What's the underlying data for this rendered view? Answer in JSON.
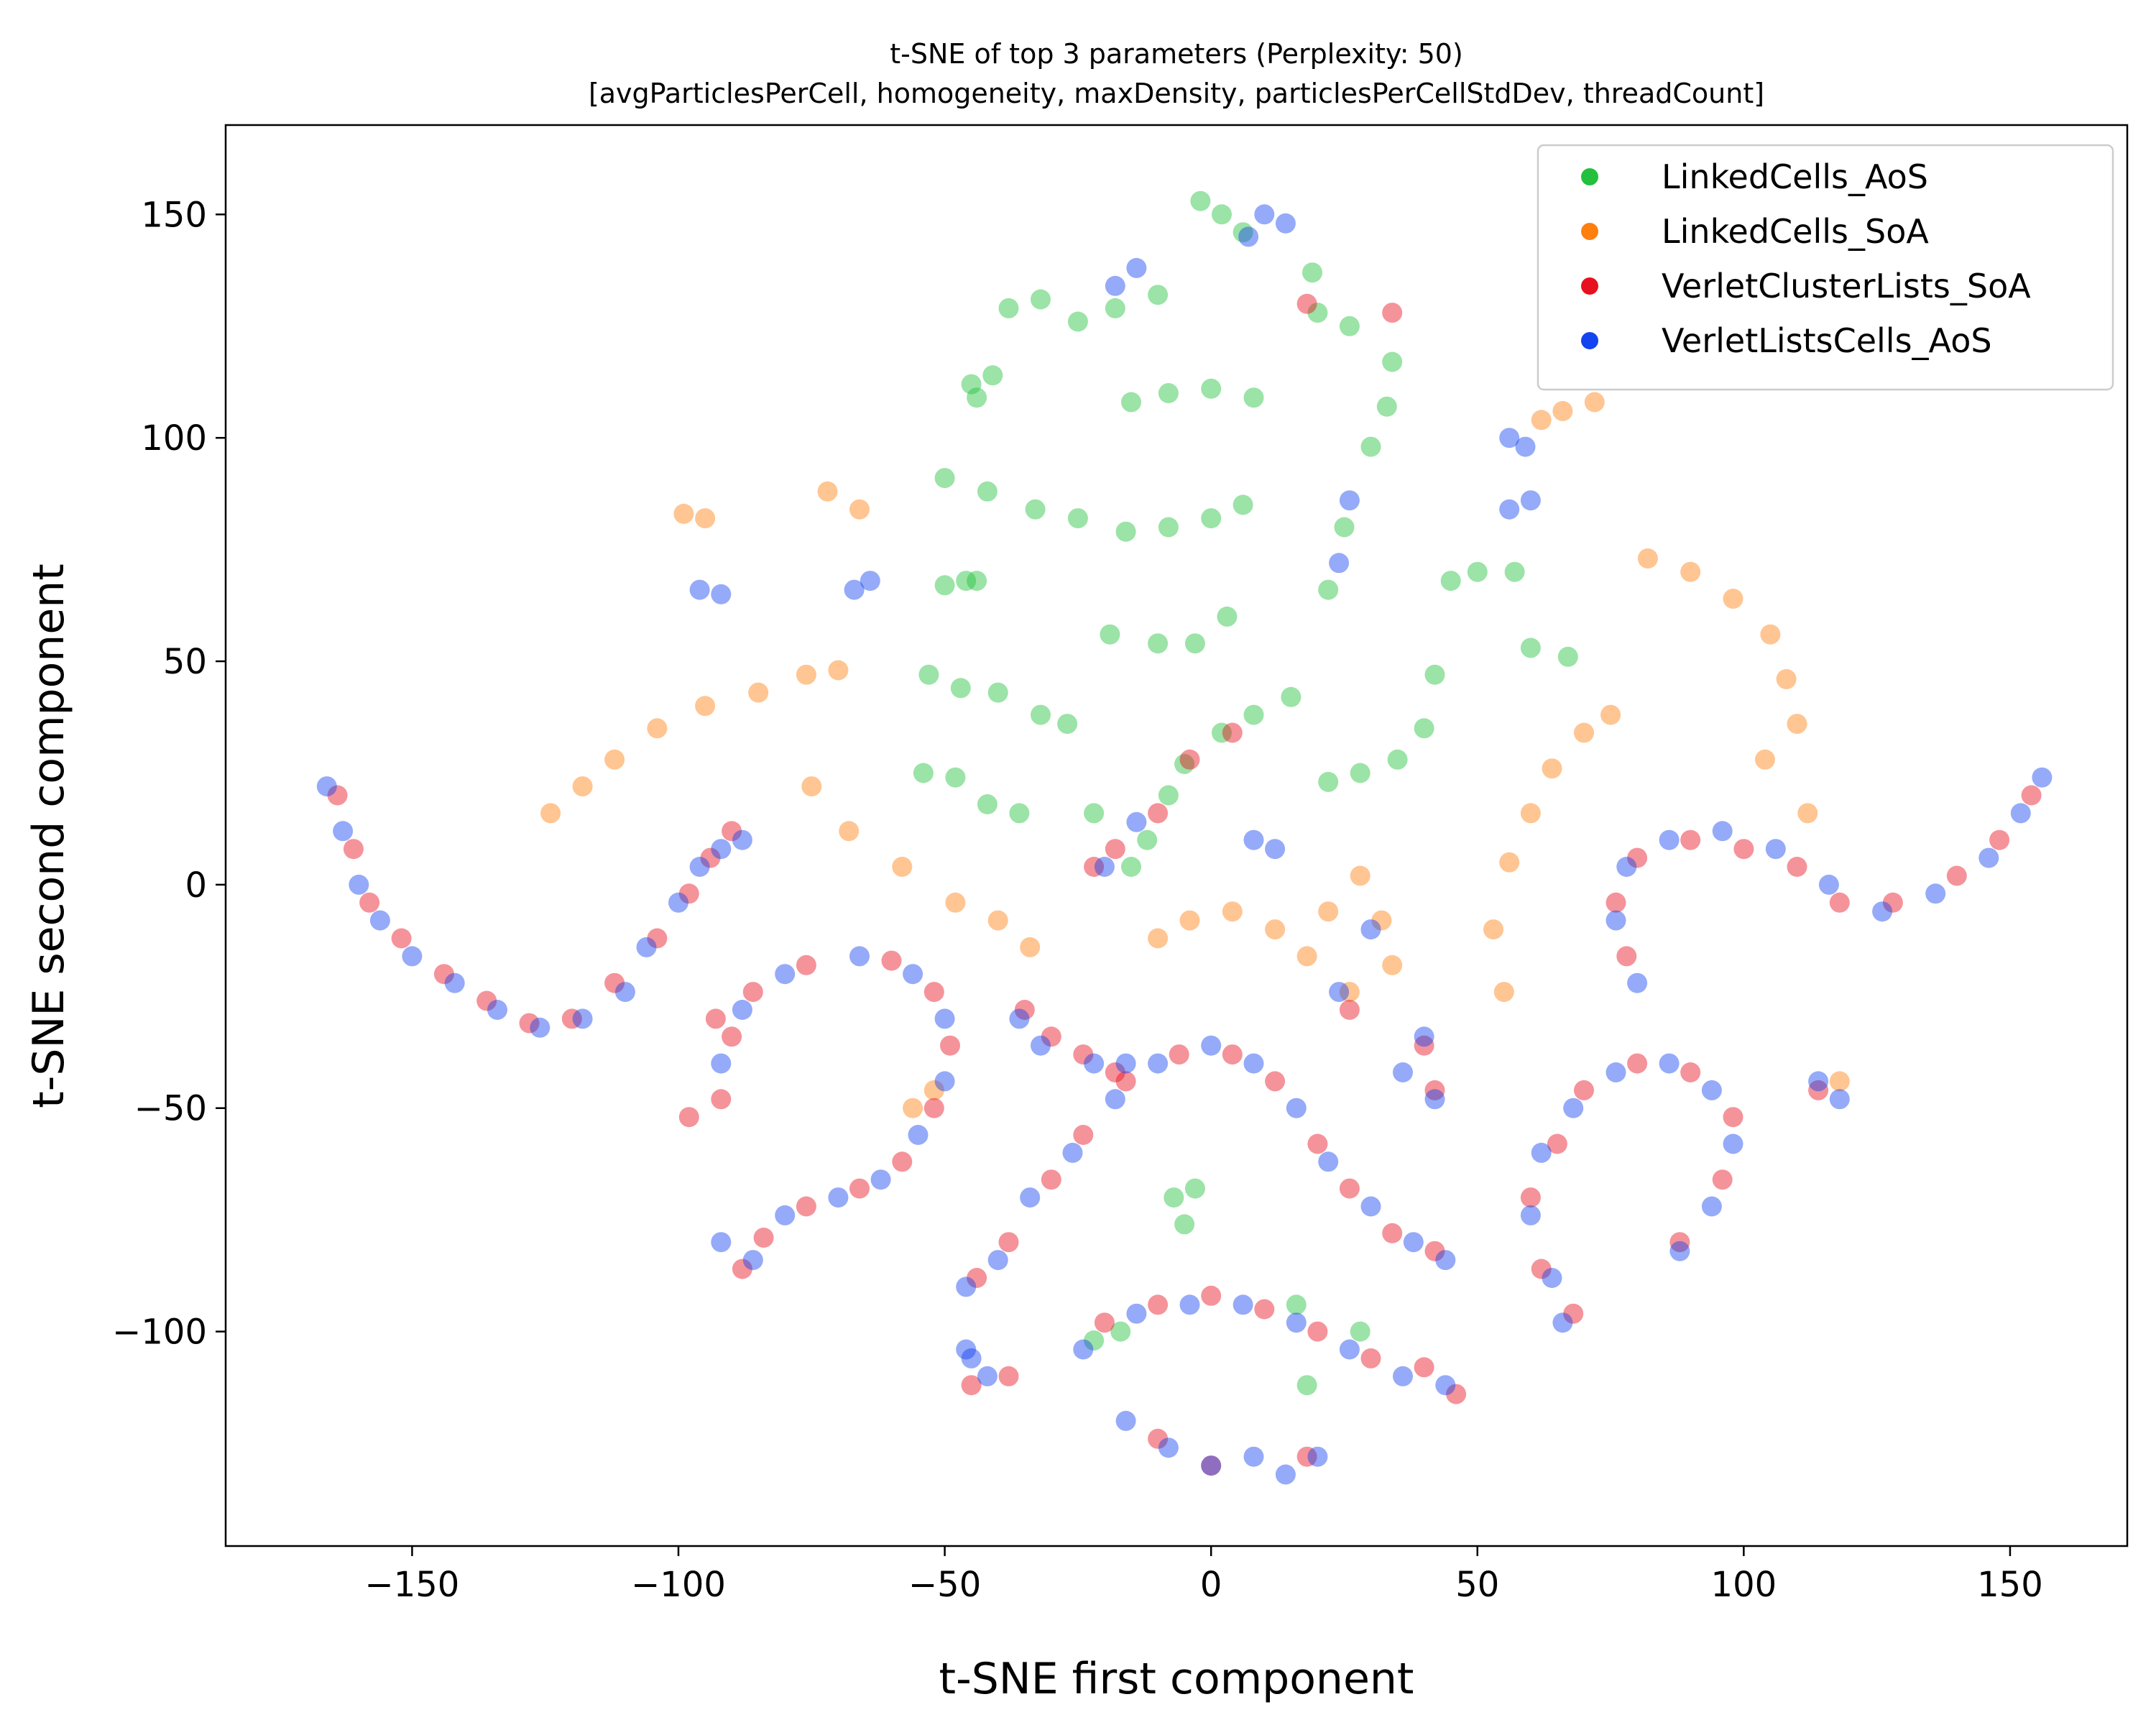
{
  "chart_data": {
    "type": "scatter",
    "title": "t-SNE of top 3 parameters (Perplexity: 50)",
    "subtitle": "[avgParticlesPerCell, homogeneity, maxDensity, particlesPerCellStdDev, threadCount]",
    "xlabel": "t-SNE first component",
    "ylabel": "t-SNE second component",
    "xlim": [
      -185,
      172
    ],
    "ylim": [
      -148,
      170
    ],
    "xticks": [
      -150,
      -100,
      -50,
      0,
      50,
      100,
      150
    ],
    "yticks": [
      -100,
      -50,
      0,
      50,
      100,
      150
    ],
    "xtick_labels": [
      "−150",
      "−100",
      "−50",
      "0",
      "50",
      "100",
      "150"
    ],
    "ytick_labels": [
      "−100",
      "−50",
      "0",
      "50",
      "100",
      "150"
    ],
    "grid": false,
    "legend_position": "top-right",
    "marker_alpha": 0.45,
    "series": [
      {
        "name": "LinkedCells_AoS",
        "color": "#22c03c",
        "points": [
          [
            -2,
            153
          ],
          [
            2,
            150
          ],
          [
            6,
            146
          ],
          [
            -45,
            112
          ],
          [
            -41,
            114
          ],
          [
            -44,
            109
          ],
          [
            -38,
            129
          ],
          [
            -32,
            131
          ],
          [
            -25,
            126
          ],
          [
            -18,
            129
          ],
          [
            -10,
            132
          ],
          [
            -15,
            108
          ],
          [
            -8,
            110
          ],
          [
            0,
            111
          ],
          [
            8,
            109
          ],
          [
            -50,
            91
          ],
          [
            -42,
            88
          ],
          [
            -33,
            84
          ],
          [
            -25,
            82
          ],
          [
            -16,
            79
          ],
          [
            -8,
            80
          ],
          [
            0,
            82
          ],
          [
            6,
            85
          ],
          [
            -50,
            67
          ],
          [
            -46,
            68
          ],
          [
            -44,
            68
          ],
          [
            -53,
            47
          ],
          [
            -47,
            44
          ],
          [
            -40,
            43
          ],
          [
            -32,
            38
          ],
          [
            -27,
            36
          ],
          [
            -54,
            25
          ],
          [
            -48,
            24
          ],
          [
            -42,
            18
          ],
          [
            -36,
            16
          ],
          [
            -22,
            16
          ],
          [
            -19,
            56
          ],
          [
            -10,
            54
          ],
          [
            -3,
            54
          ],
          [
            3,
            60
          ],
          [
            -15,
            4
          ],
          [
            -12,
            10
          ],
          [
            -8,
            20
          ],
          [
            -5,
            27
          ],
          [
            2,
            34
          ],
          [
            8,
            38
          ],
          [
            15,
            42
          ],
          [
            19,
            137
          ],
          [
            20,
            128
          ],
          [
            26,
            125
          ],
          [
            34,
            117
          ],
          [
            33,
            107
          ],
          [
            30,
            98
          ],
          [
            25,
            80
          ],
          [
            22,
            66
          ],
          [
            42,
            47
          ],
          [
            40,
            35
          ],
          [
            35,
            28
          ],
          [
            28,
            25
          ],
          [
            22,
            23
          ],
          [
            45,
            68
          ],
          [
            50,
            70
          ],
          [
            57,
            70
          ],
          [
            60,
            53
          ],
          [
            67,
            51
          ],
          [
            -7,
            -70
          ],
          [
            -5,
            -76
          ],
          [
            -3,
            -68
          ],
          [
            -22,
            -102
          ],
          [
            -17,
            -100
          ],
          [
            16,
            -94
          ],
          [
            28,
            -100
          ],
          [
            18,
            -112
          ]
        ]
      },
      {
        "name": "LinkedCells_SoA",
        "color": "#ff7f0e",
        "points": [
          [
            -124,
            16
          ],
          [
            -118,
            22
          ],
          [
            -112,
            28
          ],
          [
            -104,
            35
          ],
          [
            -95,
            40
          ],
          [
            -85,
            43
          ],
          [
            -76,
            47
          ],
          [
            -70,
            48
          ],
          [
            -99,
            83
          ],
          [
            -95,
            82
          ],
          [
            -75,
            22
          ],
          [
            -68,
            12
          ],
          [
            -58,
            4
          ],
          [
            -48,
            -4
          ],
          [
            -40,
            -8
          ],
          [
            -34,
            -14
          ],
          [
            -72,
            88
          ],
          [
            -66,
            84
          ],
          [
            -10,
            -12
          ],
          [
            -4,
            -8
          ],
          [
            4,
            -6
          ],
          [
            12,
            -10
          ],
          [
            18,
            -16
          ],
          [
            22,
            -6
          ],
          [
            28,
            2
          ],
          [
            32,
            -8
          ],
          [
            34,
            -18
          ],
          [
            26,
            -24
          ],
          [
            55,
            -24
          ],
          [
            53,
            -10
          ],
          [
            56,
            5
          ],
          [
            60,
            16
          ],
          [
            64,
            26
          ],
          [
            70,
            34
          ],
          [
            75,
            38
          ],
          [
            -52,
            -46
          ],
          [
            -56,
            -50
          ],
          [
            82,
            73
          ],
          [
            90,
            70
          ],
          [
            98,
            64
          ],
          [
            105,
            56
          ],
          [
            108,
            46
          ],
          [
            110,
            36
          ],
          [
            104,
            28
          ],
          [
            62,
            104
          ],
          [
            66,
            106
          ],
          [
            72,
            108
          ],
          [
            118,
            -44
          ],
          [
            112,
            16
          ]
        ]
      },
      {
        "name": "VerletClusterLists_SoA",
        "color": "#e8101e",
        "points": [
          [
            -164,
            20
          ],
          [
            -161,
            8
          ],
          [
            -158,
            -4
          ],
          [
            -152,
            -12
          ],
          [
            -144,
            -20
          ],
          [
            -136,
            -26
          ],
          [
            -128,
            -31
          ],
          [
            -120,
            -30
          ],
          [
            -112,
            -22
          ],
          [
            -104,
            -12
          ],
          [
            -98,
            -2
          ],
          [
            -94,
            6
          ],
          [
            -90,
            12
          ],
          [
            -93,
            -30
          ],
          [
            -92,
            -48
          ],
          [
            -98,
            -52
          ],
          [
            -88,
            -86
          ],
          [
            -84,
            -79
          ],
          [
            -76,
            -72
          ],
          [
            -66,
            -68
          ],
          [
            -58,
            -62
          ],
          [
            -52,
            -50
          ],
          [
            -49,
            -36
          ],
          [
            -52,
            -24
          ],
          [
            -60,
            -17
          ],
          [
            -76,
            -18
          ],
          [
            -86,
            -24
          ],
          [
            -90,
            -34
          ],
          [
            -35,
            -28
          ],
          [
            -30,
            -34
          ],
          [
            -45,
            -112
          ],
          [
            -38,
            -110
          ],
          [
            -44,
            -88
          ],
          [
            -38,
            -80
          ],
          [
            -30,
            -66
          ],
          [
            -24,
            -56
          ],
          [
            -16,
            -44
          ],
          [
            -6,
            -38
          ],
          [
            4,
            -38
          ],
          [
            12,
            -44
          ],
          [
            20,
            -58
          ],
          [
            26,
            -68
          ],
          [
            34,
            -78
          ],
          [
            42,
            -82
          ],
          [
            -20,
            -98
          ],
          [
            -10,
            -94
          ],
          [
            0,
            -92
          ],
          [
            10,
            -95
          ],
          [
            20,
            -100
          ],
          [
            30,
            -106
          ],
          [
            40,
            -108
          ],
          [
            46,
            -114
          ],
          [
            -10,
            -124
          ],
          [
            0,
            -130
          ],
          [
            18,
            -128
          ],
          [
            65,
            -58
          ],
          [
            60,
            -70
          ],
          [
            62,
            -86
          ],
          [
            68,
            -96
          ],
          [
            70,
            -46
          ],
          [
            80,
            -40
          ],
          [
            90,
            -42
          ],
          [
            98,
            -52
          ],
          [
            96,
            -66
          ],
          [
            88,
            -80
          ],
          [
            78,
            -16
          ],
          [
            76,
            -4
          ],
          [
            80,
            6
          ],
          [
            90,
            10
          ],
          [
            100,
            8
          ],
          [
            110,
            4
          ],
          [
            118,
            -4
          ],
          [
            128,
            -4
          ],
          [
            140,
            2
          ],
          [
            148,
            10
          ],
          [
            154,
            20
          ],
          [
            40,
            -36
          ],
          [
            42,
            -46
          ],
          [
            -24,
            -38
          ],
          [
            -18,
            -42
          ],
          [
            114,
            -46
          ],
          [
            -22,
            4
          ],
          [
            -18,
            8
          ],
          [
            -10,
            16
          ],
          [
            -4,
            28
          ],
          [
            4,
            34
          ],
          [
            26,
            -28
          ],
          [
            34,
            128
          ],
          [
            18,
            130
          ]
        ]
      },
      {
        "name": "VerletListsCells_AoS",
        "color": "#1443f0",
        "points": [
          [
            -166,
            22
          ],
          [
            -163,
            12
          ],
          [
            -160,
            0
          ],
          [
            -156,
            -8
          ],
          [
            -150,
            -16
          ],
          [
            -142,
            -22
          ],
          [
            -134,
            -28
          ],
          [
            -126,
            -32
          ],
          [
            -118,
            -30
          ],
          [
            -110,
            -24
          ],
          [
            -106,
            -14
          ],
          [
            -100,
            -4
          ],
          [
            -96,
            4
          ],
          [
            -92,
            8
          ],
          [
            -88,
            10
          ],
          [
            -96,
            66
          ],
          [
            -92,
            65
          ],
          [
            -67,
            66
          ],
          [
            -64,
            68
          ],
          [
            -92,
            -80
          ],
          [
            -86,
            -84
          ],
          [
            -80,
            -74
          ],
          [
            -70,
            -70
          ],
          [
            -62,
            -66
          ],
          [
            -55,
            -56
          ],
          [
            -50,
            -44
          ],
          [
            -50,
            -30
          ],
          [
            -56,
            -20
          ],
          [
            -66,
            -16
          ],
          [
            -80,
            -20
          ],
          [
            -88,
            -28
          ],
          [
            -92,
            -40
          ],
          [
            -45,
            -106
          ],
          [
            -42,
            -110
          ],
          [
            -46,
            -104
          ],
          [
            -36,
            -30
          ],
          [
            -32,
            -36
          ],
          [
            -46,
            -90
          ],
          [
            -40,
            -84
          ],
          [
            -34,
            -70
          ],
          [
            -26,
            -60
          ],
          [
            -18,
            -48
          ],
          [
            -10,
            -40
          ],
          [
            0,
            -36
          ],
          [
            8,
            -40
          ],
          [
            16,
            -50
          ],
          [
            22,
            -62
          ],
          [
            30,
            -72
          ],
          [
            38,
            -80
          ],
          [
            44,
            -84
          ],
          [
            -24,
            -104
          ],
          [
            -14,
            -96
          ],
          [
            -4,
            -94
          ],
          [
            6,
            -94
          ],
          [
            16,
            -98
          ],
          [
            26,
            -104
          ],
          [
            36,
            -110
          ],
          [
            44,
            -112
          ],
          [
            -16,
            -120
          ],
          [
            -8,
            -126
          ],
          [
            0,
            -130
          ],
          [
            8,
            -128
          ],
          [
            14,
            -132
          ],
          [
            20,
            -128
          ],
          [
            62,
            -60
          ],
          [
            60,
            -74
          ],
          [
            64,
            -88
          ],
          [
            66,
            -98
          ],
          [
            68,
            -50
          ],
          [
            76,
            -42
          ],
          [
            86,
            -40
          ],
          [
            94,
            -46
          ],
          [
            98,
            -58
          ],
          [
            94,
            -72
          ],
          [
            88,
            -82
          ],
          [
            80,
            -22
          ],
          [
            76,
            -8
          ],
          [
            78,
            4
          ],
          [
            86,
            10
          ],
          [
            96,
            12
          ],
          [
            106,
            8
          ],
          [
            116,
            0
          ],
          [
            126,
            -6
          ],
          [
            136,
            -2
          ],
          [
            146,
            6
          ],
          [
            152,
            16
          ],
          [
            156,
            24
          ],
          [
            40,
            -34
          ],
          [
            42,
            -48
          ],
          [
            36,
            -42
          ],
          [
            -22,
            -40
          ],
          [
            -16,
            -40
          ],
          [
            114,
            -44
          ],
          [
            118,
            -48
          ],
          [
            8,
            10
          ],
          [
            12,
            8
          ],
          [
            56,
            100
          ],
          [
            59,
            98
          ],
          [
            56,
            84
          ],
          [
            60,
            86
          ],
          [
            -18,
            134
          ],
          [
            -14,
            138
          ],
          [
            10,
            150
          ],
          [
            7,
            145
          ],
          [
            14,
            148
          ],
          [
            -20,
            4
          ],
          [
            -14,
            14
          ],
          [
            24,
            -24
          ],
          [
            30,
            -10
          ],
          [
            26,
            86
          ],
          [
            24,
            72
          ]
        ]
      }
    ]
  }
}
